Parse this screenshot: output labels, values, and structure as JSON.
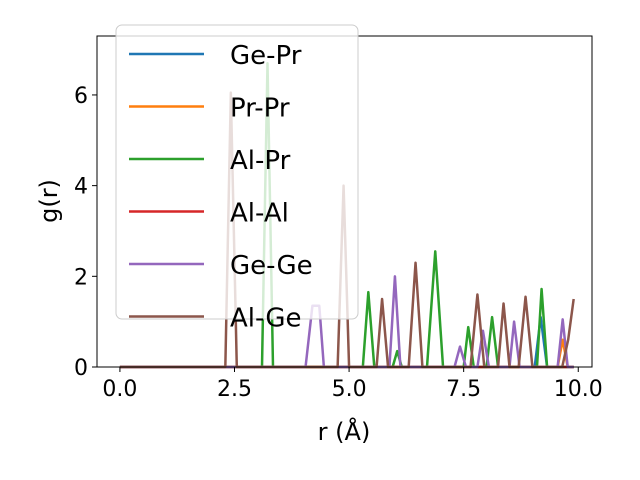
{
  "chart_data": {
    "type": "line",
    "xlabel": "r (Å)",
    "ylabel": "g(r)",
    "xlim": [
      -0.5,
      10.3
    ],
    "ylim": [
      0,
      7.3
    ],
    "xticks": [
      "0.0",
      "2.5",
      "5.0",
      "7.5",
      "10.0"
    ],
    "yticks": [
      "0",
      "2",
      "4",
      "6"
    ],
    "grid": false,
    "legend_position": "upper-left",
    "series": [
      {
        "name": "Ge-Pr",
        "color": "#1f77b4",
        "x": [
          0,
          9.05,
          9.18,
          9.32,
          9.9
        ],
        "y": [
          0,
          0,
          1.1,
          0,
          0
        ]
      },
      {
        "name": "Pr-Pr",
        "color": "#ff7f0e",
        "x": [
          0,
          9.55,
          9.66,
          9.77,
          9.9
        ],
        "y": [
          0,
          0,
          0.6,
          0,
          0
        ]
      },
      {
        "name": "Al-Pr",
        "color": "#2ca02c",
        "x": [
          0,
          3.1,
          3.22,
          3.34,
          5.3,
          5.42,
          5.55,
          5.95,
          6.05,
          6.15,
          6.7,
          6.88,
          7.05,
          7.5,
          7.6,
          7.72,
          8.0,
          8.12,
          8.25,
          9.1,
          9.2,
          9.32,
          9.9
        ],
        "y": [
          0,
          0,
          6.7,
          0,
          0,
          1.65,
          0,
          0,
          0.35,
          0,
          0,
          2.55,
          0,
          0,
          0.88,
          0,
          0,
          1.1,
          0,
          0,
          1.72,
          0,
          0
        ]
      },
      {
        "name": "Al-Al",
        "color": "#d62728",
        "x": [
          0,
          9.9
        ],
        "y": [
          0,
          0
        ]
      },
      {
        "name": "Ge-Ge",
        "color": "#9467bd",
        "x": [
          0,
          4.05,
          4.2,
          4.35,
          4.45,
          5.88,
          6.0,
          6.12,
          7.3,
          7.42,
          7.55,
          7.8,
          7.92,
          8.05,
          8.5,
          8.6,
          8.72,
          9.55,
          9.66,
          9.77,
          9.9
        ],
        "y": [
          0,
          0,
          1.35,
          1.35,
          0,
          0,
          2.0,
          0,
          0,
          0.45,
          0,
          0,
          0.8,
          0,
          0,
          1.0,
          0,
          0,
          1.05,
          0,
          0
        ]
      },
      {
        "name": "Al-Ge",
        "color": "#8c564b",
        "x": [
          0,
          2.3,
          2.42,
          2.55,
          4.75,
          4.88,
          5.0,
          5.6,
          5.72,
          5.85,
          6.3,
          6.45,
          6.6,
          7.65,
          7.8,
          7.95,
          8.25,
          8.37,
          8.5,
          8.7,
          8.85,
          9.0,
          9.65,
          9.78,
          9.9
        ],
        "y": [
          0,
          0,
          6.05,
          0,
          0,
          4.0,
          0,
          0,
          1.5,
          0,
          0,
          2.3,
          0,
          0,
          1.6,
          0,
          0,
          1.4,
          0,
          0,
          1.55,
          0,
          0,
          0.6,
          1.5
        ]
      }
    ]
  }
}
